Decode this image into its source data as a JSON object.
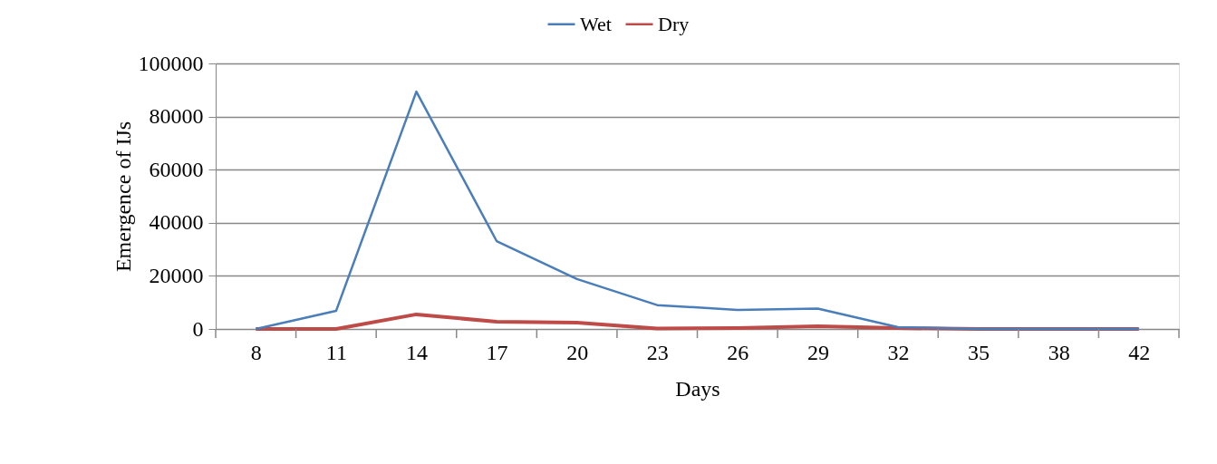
{
  "chart_data": {
    "type": "line",
    "xlabel": "Days",
    "ylabel": "Emergence of IJs",
    "categories": [
      "8",
      "11",
      "14",
      "17",
      "20",
      "23",
      "26",
      "29",
      "32",
      "35",
      "38",
      "42"
    ],
    "series": [
      {
        "name": "Wet",
        "color": "#4a7ebb",
        "values": [
          0,
          6800,
          89400,
          33100,
          18800,
          9000,
          7200,
          7700,
          700,
          0,
          0,
          0
        ]
      },
      {
        "name": "Dry",
        "color": "#be4b48",
        "values": [
          0,
          0,
          5500,
          2700,
          2400,
          200,
          300,
          1000,
          300,
          0,
          0,
          0
        ]
      }
    ],
    "ylim": [
      0,
      100000
    ],
    "yticks": [
      0,
      20000,
      40000,
      60000,
      80000,
      100000
    ],
    "grid": "y",
    "legend": "top",
    "marker": "none",
    "line_style": "solid"
  }
}
